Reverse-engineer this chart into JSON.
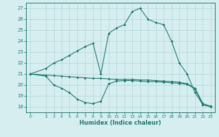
{
  "line1_x": [
    0,
    2,
    3,
    4,
    5,
    6,
    7,
    8,
    9,
    10,
    11,
    12,
    13,
    14,
    15,
    16,
    17,
    18,
    19,
    20,
    21,
    22,
    23
  ],
  "line1_y": [
    21.0,
    21.5,
    22.0,
    22.3,
    22.7,
    23.1,
    23.5,
    23.8,
    21.0,
    24.7,
    25.2,
    25.5,
    26.7,
    27.0,
    26.0,
    25.7,
    25.5,
    24.0,
    22.0,
    21.0,
    19.3,
    18.2,
    18.0
  ],
  "line2_x": [
    0,
    2,
    3,
    4,
    5,
    6,
    7,
    8,
    9,
    10,
    11,
    12,
    13,
    14,
    15,
    16,
    17,
    18,
    19,
    20,
    21,
    22,
    23
  ],
  "line2_y": [
    21.0,
    20.9,
    20.85,
    20.8,
    20.75,
    20.7,
    20.65,
    20.6,
    20.6,
    20.55,
    20.5,
    20.5,
    20.5,
    20.45,
    20.45,
    20.4,
    20.35,
    20.3,
    20.25,
    20.1,
    19.7,
    18.3,
    18.05
  ],
  "line3_x": [
    0,
    2,
    3,
    4,
    5,
    6,
    7,
    8,
    9,
    10,
    11,
    12,
    13,
    14,
    15,
    16,
    17,
    18,
    19,
    20,
    21,
    22,
    23
  ],
  "line3_y": [
    21.0,
    20.8,
    20.0,
    19.7,
    19.3,
    18.7,
    18.4,
    18.3,
    18.5,
    20.1,
    20.35,
    20.4,
    20.4,
    20.35,
    20.3,
    20.3,
    20.25,
    20.2,
    20.15,
    20.05,
    19.65,
    18.2,
    18.05
  ],
  "color": "#1a7a6e",
  "bg_color": "#d6eef0",
  "grid_color": "#b8d8dc",
  "xlabel": "Humidex (Indice chaleur)",
  "ylim": [
    17.5,
    27.5
  ],
  "xlim": [
    -0.5,
    23.5
  ],
  "yticks": [
    18,
    19,
    20,
    21,
    22,
    23,
    24,
    25,
    26,
    27
  ],
  "xticks": [
    0,
    2,
    3,
    4,
    5,
    6,
    7,
    8,
    9,
    10,
    11,
    12,
    13,
    14,
    15,
    16,
    17,
    18,
    19,
    20,
    21,
    22,
    23
  ]
}
